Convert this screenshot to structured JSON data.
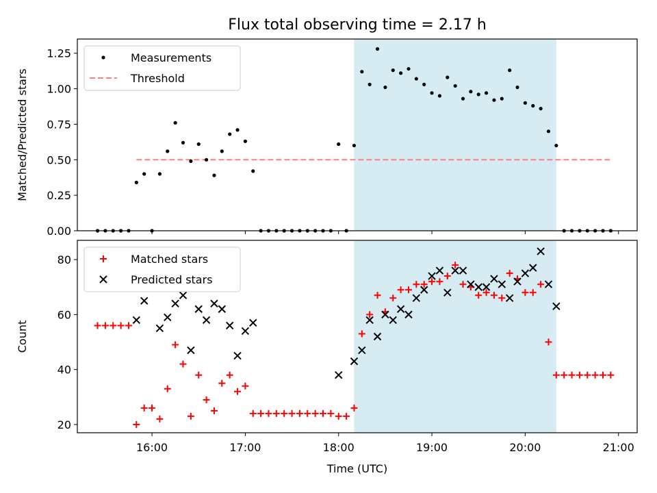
{
  "title": "Flux total observing time = 2.17 h",
  "chart_data": [
    {
      "type": "scatter",
      "ylabel": "Matched/Predicted stars",
      "ylim": [
        0,
        1.35
      ],
      "yticks": [
        "0.00",
        "0.25",
        "0.50",
        "0.75",
        "1.00",
        "1.25"
      ],
      "xlim": [
        "15:12",
        "21:12"
      ],
      "legend": {
        "placement": "top-left",
        "entries": [
          "Measurements",
          "Threshold"
        ]
      },
      "threshold": {
        "name": "Threshold",
        "y": 0.5,
        "x_start": "15:50",
        "x_end": "20:55",
        "color": "#ff7f7f"
      },
      "highlight": {
        "x_start": "18:10",
        "x_end": "20:20",
        "color": "#add8e6"
      },
      "series": [
        {
          "name": "Measurements",
          "points": [
            [
              "15:25",
              0
            ],
            [
              "15:30",
              0
            ],
            [
              "15:35",
              0
            ],
            [
              "15:40",
              0
            ],
            [
              "15:45",
              0
            ],
            [
              "15:50",
              0.34
            ],
            [
              "15:55",
              0.4
            ],
            [
              "16:00",
              0
            ],
            [
              "16:05",
              0.4
            ],
            [
              "16:10",
              0.56
            ],
            [
              "16:15",
              0.76
            ],
            [
              "16:20",
              0.62
            ],
            [
              "16:25",
              0.49
            ],
            [
              "16:30",
              0.61
            ],
            [
              "16:35",
              0.5
            ],
            [
              "16:40",
              0.39
            ],
            [
              "16:45",
              0.56
            ],
            [
              "16:50",
              0.68
            ],
            [
              "16:55",
              0.71
            ],
            [
              "17:00",
              0.63
            ],
            [
              "17:05",
              0.42
            ],
            [
              "17:10",
              0
            ],
            [
              "17:15",
              0
            ],
            [
              "17:20",
              0
            ],
            [
              "17:25",
              0
            ],
            [
              "17:30",
              0
            ],
            [
              "17:35",
              0
            ],
            [
              "17:40",
              0
            ],
            [
              "17:45",
              0
            ],
            [
              "17:50",
              0
            ],
            [
              "17:55",
              0
            ],
            [
              "18:00",
              0.61
            ],
            [
              "18:05",
              0
            ],
            [
              "18:10",
              0.6
            ],
            [
              "18:15",
              1.12
            ],
            [
              "18:20",
              1.03
            ],
            [
              "18:25",
              1.28
            ],
            [
              "18:30",
              1.01
            ],
            [
              "18:35",
              1.13
            ],
            [
              "18:40",
              1.11
            ],
            [
              "18:45",
              1.14
            ],
            [
              "18:50",
              1.07
            ],
            [
              "18:55",
              1.03
            ],
            [
              "19:00",
              0.97
            ],
            [
              "19:05",
              0.95
            ],
            [
              "19:10",
              1.08
            ],
            [
              "19:15",
              1.02
            ],
            [
              "19:20",
              0.93
            ],
            [
              "19:25",
              0.98
            ],
            [
              "19:30",
              0.96
            ],
            [
              "19:35",
              0.97
            ],
            [
              "19:40",
              0.92
            ],
            [
              "19:45",
              0.93
            ],
            [
              "19:50",
              1.13
            ],
            [
              "19:55",
              1.01
            ],
            [
              "20:00",
              0.9
            ],
            [
              "20:05",
              0.88
            ],
            [
              "20:10",
              0.86
            ],
            [
              "20:15",
              0.7
            ],
            [
              "20:20",
              0.6
            ],
            [
              "20:25",
              0
            ],
            [
              "20:30",
              0
            ],
            [
              "20:35",
              0
            ],
            [
              "20:40",
              0
            ],
            [
              "20:45",
              0
            ],
            [
              "20:50",
              0
            ],
            [
              "20:55",
              0
            ]
          ]
        }
      ]
    },
    {
      "type": "scatter",
      "ylabel": "Count",
      "xlabel": "Time (UTC)",
      "ylim": [
        17,
        87
      ],
      "yticks": [
        "20",
        "40",
        "60",
        "80"
      ],
      "xlim": [
        "15:12",
        "21:12"
      ],
      "xticks": [
        "16:00",
        "17:00",
        "18:00",
        "19:00",
        "20:00",
        "21:00"
      ],
      "legend": {
        "placement": "top-left",
        "entries": [
          "Matched stars",
          "Predicted stars"
        ]
      },
      "highlight": {
        "x_start": "18:10",
        "x_end": "20:20",
        "color": "#add8e6"
      },
      "series": [
        {
          "name": "Matched stars",
          "marker": "plus",
          "color": "#ff0000",
          "points": [
            [
              "15:25",
              56
            ],
            [
              "15:30",
              56
            ],
            [
              "15:35",
              56
            ],
            [
              "15:40",
              56
            ],
            [
              "15:45",
              56
            ],
            [
              "15:50",
              20
            ],
            [
              "15:55",
              26
            ],
            [
              "16:00",
              26
            ],
            [
              "16:05",
              22
            ],
            [
              "16:10",
              33
            ],
            [
              "16:15",
              49
            ],
            [
              "16:20",
              42
            ],
            [
              "16:25",
              23
            ],
            [
              "16:30",
              38
            ],
            [
              "16:35",
              29
            ],
            [
              "16:40",
              25
            ],
            [
              "16:45",
              35
            ],
            [
              "16:50",
              38
            ],
            [
              "16:55",
              32
            ],
            [
              "17:00",
              34
            ],
            [
              "17:05",
              24
            ],
            [
              "17:10",
              24
            ],
            [
              "17:15",
              24
            ],
            [
              "17:20",
              24
            ],
            [
              "17:25",
              24
            ],
            [
              "17:30",
              24
            ],
            [
              "17:35",
              24
            ],
            [
              "17:40",
              24
            ],
            [
              "17:45",
              24
            ],
            [
              "17:50",
              24
            ],
            [
              "17:55",
              24
            ],
            [
              "18:00",
              23
            ],
            [
              "18:05",
              23
            ],
            [
              "18:10",
              26
            ],
            [
              "18:15",
              53
            ],
            [
              "18:20",
              60
            ],
            [
              "18:25",
              67
            ],
            [
              "18:30",
              61
            ],
            [
              "18:35",
              66
            ],
            [
              "18:40",
              69
            ],
            [
              "18:45",
              69
            ],
            [
              "18:50",
              71
            ],
            [
              "18:55",
              71
            ],
            [
              "19:00",
              72
            ],
            [
              "19:05",
              72
            ],
            [
              "19:10",
              74
            ],
            [
              "19:15",
              78
            ],
            [
              "19:20",
              71
            ],
            [
              "19:25",
              70
            ],
            [
              "19:30",
              67
            ],
            [
              "19:35",
              68
            ],
            [
              "19:40",
              67
            ],
            [
              "19:45",
              66
            ],
            [
              "19:50",
              75
            ],
            [
              "19:55",
              73
            ],
            [
              "20:00",
              68
            ],
            [
              "20:05",
              68
            ],
            [
              "20:10",
              71
            ],
            [
              "20:15",
              50
            ],
            [
              "20:20",
              38
            ],
            [
              "20:25",
              38
            ],
            [
              "20:30",
              38
            ],
            [
              "20:35",
              38
            ],
            [
              "20:40",
              38
            ],
            [
              "20:45",
              38
            ],
            [
              "20:50",
              38
            ],
            [
              "20:55",
              38
            ]
          ]
        },
        {
          "name": "Predicted stars",
          "marker": "x",
          "color": "#000000",
          "points": [
            [
              "15:50",
              58
            ],
            [
              "15:55",
              65
            ],
            [
              "16:05",
              55
            ],
            [
              "16:10",
              59
            ],
            [
              "16:15",
              64
            ],
            [
              "16:20",
              67
            ],
            [
              "16:25",
              47
            ],
            [
              "16:30",
              62
            ],
            [
              "16:35",
              58
            ],
            [
              "16:40",
              64
            ],
            [
              "16:45",
              62
            ],
            [
              "16:50",
              56
            ],
            [
              "16:55",
              45
            ],
            [
              "17:00",
              54
            ],
            [
              "17:05",
              57
            ],
            [
              "18:00",
              38
            ],
            [
              "18:10",
              43
            ],
            [
              "18:15",
              47
            ],
            [
              "18:20",
              58
            ],
            [
              "18:25",
              52
            ],
            [
              "18:30",
              60
            ],
            [
              "18:35",
              58
            ],
            [
              "18:40",
              62
            ],
            [
              "18:45",
              60
            ],
            [
              "18:50",
              66
            ],
            [
              "18:55",
              69
            ],
            [
              "19:00",
              74
            ],
            [
              "19:05",
              76
            ],
            [
              "19:10",
              68
            ],
            [
              "19:15",
              76
            ],
            [
              "19:20",
              76
            ],
            [
              "19:25",
              71
            ],
            [
              "19:30",
              70
            ],
            [
              "19:35",
              70
            ],
            [
              "19:40",
              73
            ],
            [
              "19:45",
              71
            ],
            [
              "19:50",
              66
            ],
            [
              "19:55",
              72
            ],
            [
              "20:00",
              75
            ],
            [
              "20:05",
              77
            ],
            [
              "20:10",
              83
            ],
            [
              "20:15",
              71
            ],
            [
              "20:20",
              63
            ]
          ]
        }
      ]
    }
  ]
}
